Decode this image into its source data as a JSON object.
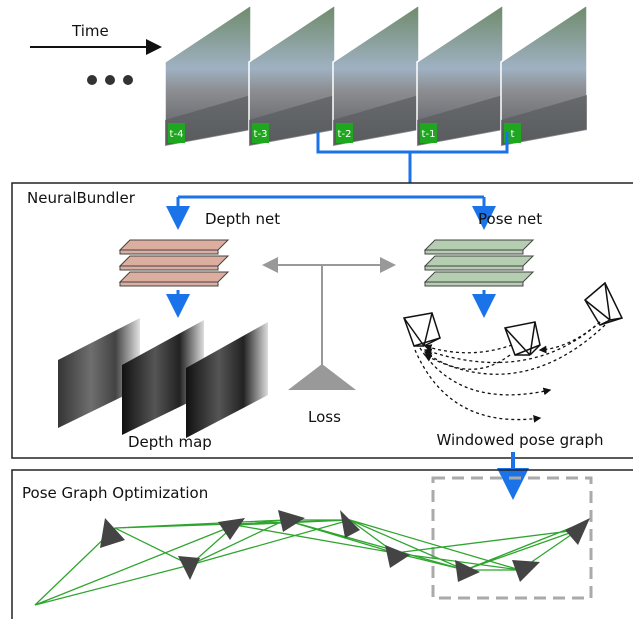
{
  "time_label": "Time",
  "frames": [
    "t-4",
    "t-3",
    "t-2",
    "t-1",
    "t"
  ],
  "neural_bundler": {
    "title": "NeuralBundler",
    "depth_net": "Depth net",
    "pose_net": "Pose net",
    "loss": "Loss",
    "depth_map": "Depth map",
    "windowed_pose_graph": "Windowed pose graph"
  },
  "pose_graph_optimization": {
    "title": "Pose Graph Optimization"
  }
}
